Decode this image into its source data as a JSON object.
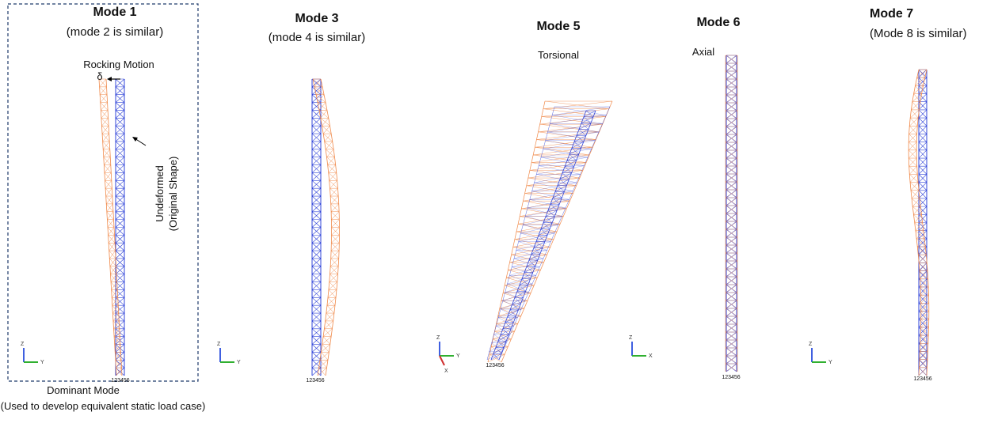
{
  "panels": [
    {
      "title": "Mode 1",
      "subtitle": "(mode 2 is similar)",
      "node_label": "123456",
      "axes": [
        "Z",
        "Y"
      ]
    },
    {
      "title": "Mode 3",
      "subtitle": "(mode 4 is similar)",
      "node_label": "123456",
      "axes": [
        "Z",
        "Y"
      ]
    },
    {
      "title": "Mode 5",
      "subtitle": "Torsional",
      "node_label": "123456",
      "axes": [
        "Z",
        "Y",
        "X"
      ]
    },
    {
      "title": "Mode 6",
      "subtitle": "Axial",
      "node_label": "123456",
      "axes": [
        "Z",
        "X"
      ]
    },
    {
      "title": "Mode 7",
      "subtitle": "(Mode 8 is similar)",
      "node_label": "123456",
      "axes": [
        "Z",
        "Y"
      ]
    }
  ],
  "annotations": {
    "rocking": "Rocking Motion",
    "delta": "δ",
    "undeformed": [
      "Undeformed",
      "(Original Shape)"
    ]
  },
  "footer": {
    "title": "Dominant Mode",
    "note": "(Used to develop equivalent static load case)"
  }
}
